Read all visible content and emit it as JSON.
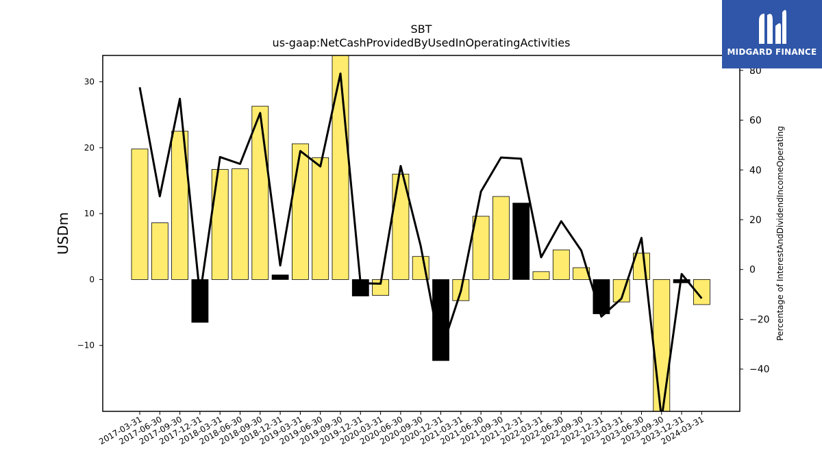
{
  "chart_data": {
    "type": "bar",
    "title": "SBT",
    "subtitle": "us-gaap:NetCashProvidedByUsedInOperatingActivities",
    "ylabel": "USDm",
    "y2label": "Percentage of InterestAndDividendIncomeOperating",
    "ylim": [
      -20,
      34
    ],
    "y2lim": [
      -57,
      86
    ],
    "yticks": [
      -10,
      0,
      10,
      20,
      30
    ],
    "y2ticks": [
      -40,
      -20,
      0,
      20,
      40,
      60,
      80
    ],
    "grid": false,
    "categories": [
      "2017-03-31",
      "2017-06-30",
      "2017-09-30",
      "2017-12-31",
      "2018-03-31",
      "2018-06-30",
      "2018-09-30",
      "2018-12-31",
      "2019-03-31",
      "2019-06-30",
      "2019-09-30",
      "2019-12-31",
      "2020-03-31",
      "2020-06-30",
      "2020-09-30",
      "2020-12-31",
      "2021-03-31",
      "2021-06-30",
      "2021-09-30",
      "2021-12-31",
      "2022-03-31",
      "2022-06-30",
      "2022-09-30",
      "2022-12-31",
      "2023-03-31",
      "2023-06-30",
      "2023-09-30",
      "2023-12-31",
      "2024-03-31"
    ],
    "series": [
      {
        "kind": "bar",
        "axis": "left",
        "values": [
          19.8,
          8.6,
          22.5,
          -6.5,
          16.7,
          16.8,
          26.3,
          0.7,
          20.6,
          18.5,
          35.0,
          -2.5,
          -2.4,
          16.0,
          3.5,
          -12.3,
          -3.2,
          9.6,
          12.6,
          11.6,
          1.2,
          4.5,
          1.8,
          -5.2,
          -3.4,
          4.0,
          -20.0,
          -0.5,
          -3.8
        ],
        "highlight": [
          false,
          false,
          false,
          true,
          false,
          false,
          false,
          true,
          false,
          false,
          false,
          true,
          false,
          false,
          false,
          true,
          false,
          false,
          false,
          true,
          false,
          false,
          false,
          true,
          false,
          false,
          false,
          true,
          false
        ],
        "color": "#ffec6e",
        "highlight_color": "#000000"
      },
      {
        "kind": "line",
        "axis": "right",
        "values": [
          73.2,
          29.4,
          68.6,
          -10.4,
          45.2,
          42.4,
          62.9,
          1.6,
          47.6,
          41.4,
          78.7,
          -5.5,
          -5.7,
          41.6,
          9.4,
          -33.1,
          -8.7,
          31.3,
          45.0,
          44.5,
          4.9,
          19.4,
          7.6,
          -18.9,
          -11.7,
          12.7,
          -60.0,
          -1.8,
          -11.6
        ],
        "color": "#000000"
      }
    ]
  },
  "logo": {
    "text": "MIDGARD FINANCE",
    "color": "#2f56a8"
  }
}
